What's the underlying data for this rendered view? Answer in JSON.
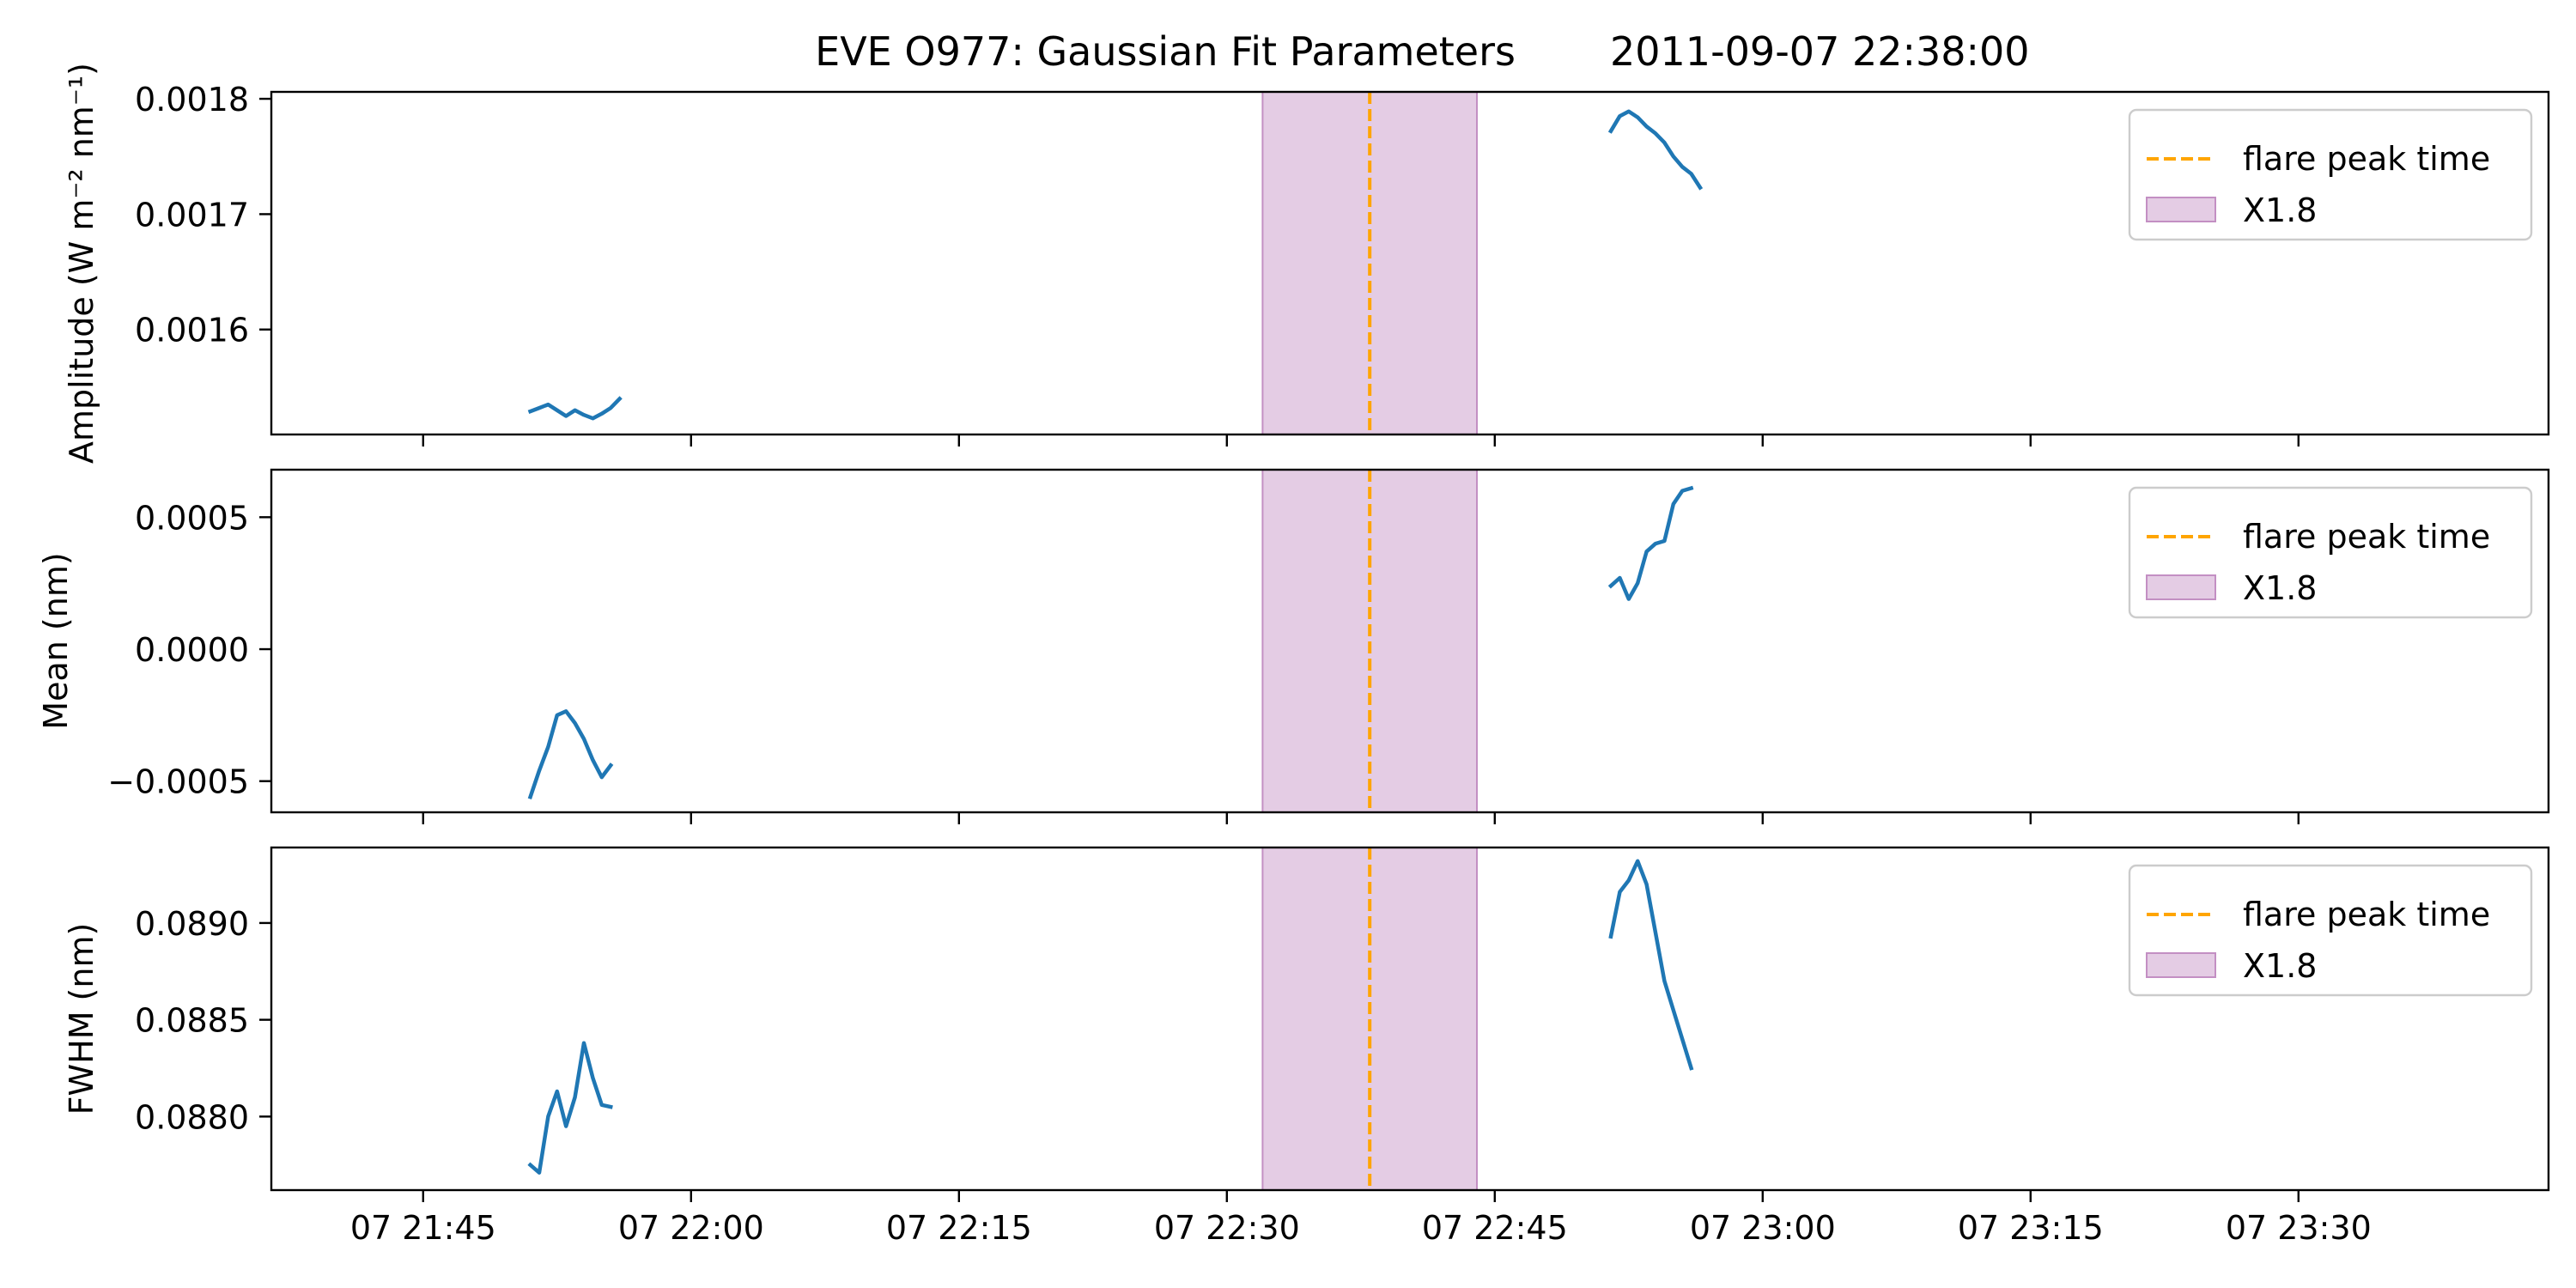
{
  "figure": {
    "title": "EVE O977: Gaussian Fit Parameters",
    "timestamp": "2011-09-07 22:38:00"
  },
  "colors": {
    "series": "#1f77b4",
    "flare_line": "#ffa500",
    "flare_span": "#c38fc3"
  },
  "chart_data": [
    {
      "type": "line",
      "ylabel": "Amplitude (W m⁻² nm⁻¹)",
      "ylim": [
        0.001509,
        0.001806
      ],
      "yticks": [
        {
          "value": 0.0016,
          "label": "0.0016"
        },
        {
          "value": 0.0017,
          "label": "0.0017"
        },
        {
          "value": 0.0018,
          "label": "0.0018"
        }
      ],
      "series": [
        {
          "segments": [
            [
              [
                "21:51:00",
                0.001529
              ],
              [
                "21:51:30",
                0.001532
              ],
              [
                "21:52:00",
                0.001535
              ],
              [
                "21:52:30",
                0.00153
              ],
              [
                "21:53:00",
                0.001525
              ],
              [
                "21:53:30",
                0.00153
              ],
              [
                "21:54:00",
                0.001526
              ],
              [
                "21:54:30",
                0.001523
              ],
              [
                "21:55:00",
                0.001527
              ],
              [
                "21:55:30",
                0.001532
              ],
              [
                "21:56:00",
                0.00154
              ]
            ],
            [
              [
                "22:51:30",
                0.001772
              ],
              [
                "22:52:00",
                0.001785
              ],
              [
                "22:52:30",
                0.001789
              ],
              [
                "22:53:00",
                0.001784
              ],
              [
                "22:53:30",
                0.001776
              ],
              [
                "22:54:00",
                0.00177
              ],
              [
                "22:54:30",
                0.001762
              ],
              [
                "22:55:00",
                0.00175
              ],
              [
                "22:55:30",
                0.001741
              ],
              [
                "22:56:00",
                0.001735
              ],
              [
                "22:56:30",
                0.001723
              ]
            ]
          ]
        }
      ],
      "legend": {
        "placement": "top-right",
        "entries": [
          "flare peak time",
          "X1.8"
        ]
      }
    },
    {
      "type": "line",
      "ylabel": "Mean (nm)",
      "ylim": [
        -0.000618,
        0.00068
      ],
      "yticks": [
        {
          "value": -0.0005,
          "label": "−0.0005"
        },
        {
          "value": 0.0,
          "label": "0.0000"
        },
        {
          "value": 0.0005,
          "label": "0.0005"
        }
      ],
      "series": [
        {
          "segments": [
            [
              [
                "21:51:00",
                -0.00056
              ],
              [
                "21:51:30",
                -0.00046
              ],
              [
                "21:52:00",
                -0.00037
              ],
              [
                "21:52:30",
                -0.00025
              ],
              [
                "21:53:00",
                -0.000235
              ],
              [
                "21:53:30",
                -0.00028
              ],
              [
                "21:54:00",
                -0.00034
              ],
              [
                "21:54:30",
                -0.00042
              ],
              [
                "21:55:00",
                -0.000485
              ],
              [
                "21:55:30",
                -0.00044
              ]
            ],
            [
              [
                "22:51:30",
                0.00024
              ],
              [
                "22:52:00",
                0.00027
              ],
              [
                "22:52:30",
                0.00019
              ],
              [
                "22:53:00",
                0.00025
              ],
              [
                "22:53:30",
                0.00037
              ],
              [
                "22:54:00",
                0.0004
              ],
              [
                "22:54:30",
                0.00041
              ],
              [
                "22:55:00",
                0.00055
              ],
              [
                "22:55:30",
                0.0006
              ],
              [
                "22:56:00",
                0.00061
              ]
            ]
          ]
        }
      ],
      "legend": {
        "placement": "top-right",
        "entries": [
          "flare peak time",
          "X1.8"
        ]
      }
    },
    {
      "type": "line",
      "ylabel": "FWHM (nm)",
      "ylim": [
        0.08762,
        0.08939
      ],
      "yticks": [
        {
          "value": 0.088,
          "label": "0.0880"
        },
        {
          "value": 0.0885,
          "label": "0.0885"
        },
        {
          "value": 0.089,
          "label": "0.0890"
        }
      ],
      "series": [
        {
          "segments": [
            [
              [
                "21:51:00",
                0.08775
              ],
              [
                "21:51:30",
                0.08771
              ],
              [
                "21:52:00",
                0.088
              ],
              [
                "21:52:30",
                0.08813
              ],
              [
                "21:53:00",
                0.08795
              ],
              [
                "21:53:30",
                0.0881
              ],
              [
                "21:54:00",
                0.08838
              ],
              [
                "21:54:30",
                0.0882
              ],
              [
                "21:55:00",
                0.08806
              ],
              [
                "21:55:30",
                0.08805
              ]
            ],
            [
              [
                "22:51:30",
                0.08893
              ],
              [
                "22:52:00",
                0.08916
              ],
              [
                "22:52:30",
                0.08922
              ],
              [
                "22:53:00",
                0.08932
              ],
              [
                "22:53:30",
                0.0892
              ],
              [
                "22:54:00",
                0.08895
              ],
              [
                "22:54:30",
                0.0887
              ],
              [
                "22:55:00",
                0.08855
              ],
              [
                "22:55:30",
                0.0884
              ],
              [
                "22:56:00",
                0.08825
              ]
            ]
          ]
        }
      ],
      "legend": {
        "placement": "top-right",
        "entries": [
          "flare peak time",
          "X1.8"
        ]
      }
    }
  ],
  "x_axis": {
    "range": [
      "21:36:30",
      "23:44:00"
    ],
    "ticks": [
      {
        "time": "21:45",
        "label": "07 21:45"
      },
      {
        "time": "22:00",
        "label": "07 22:00"
      },
      {
        "time": "22:15",
        "label": "07 22:15"
      },
      {
        "time": "22:30",
        "label": "07 22:30"
      },
      {
        "time": "22:45",
        "label": "07 22:45"
      },
      {
        "time": "23:00",
        "label": "07 23:00"
      },
      {
        "time": "23:15",
        "label": "07 23:15"
      },
      {
        "time": "23:30",
        "label": "07 23:30"
      }
    ]
  },
  "flare": {
    "peak_time": "22:38:00",
    "start_time": "22:32:00",
    "end_time": "22:44:00",
    "peak_label": "flare peak time",
    "class_label": "X1.8"
  }
}
